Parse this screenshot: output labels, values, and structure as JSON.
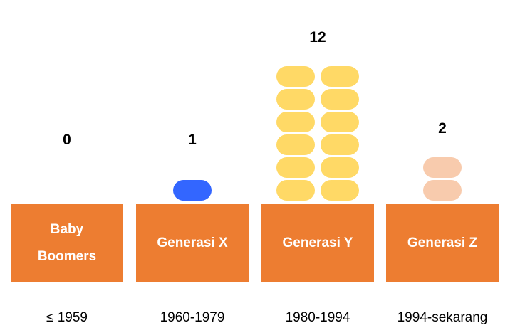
{
  "chart_data": {
    "type": "pictograph",
    "categories": [
      "Baby Boomers",
      "Generasi X",
      "Generasi Y",
      "Generasi Z"
    ],
    "periods": [
      "≤ 1959",
      "1960-1979",
      "1980-1994",
      "1994-sekarang"
    ],
    "values": [
      0,
      1,
      12,
      2
    ],
    "colors": [
      "#ED7D31",
      "#3366FF",
      "#FFD966",
      "#F8CBAD"
    ]
  }
}
